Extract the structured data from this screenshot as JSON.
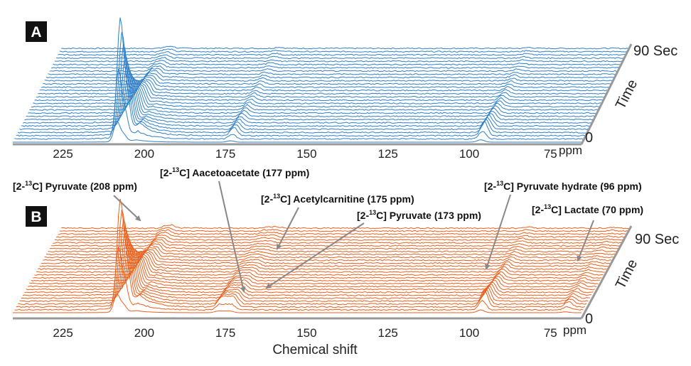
{
  "chart_data": [
    {
      "panel": "A",
      "type": "line",
      "title": "",
      "xlabel": "",
      "xunit": "ppm",
      "xlim": [
        240,
        65
      ],
      "x_ticks": [
        225,
        200,
        175,
        150,
        125,
        100,
        75
      ],
      "depth_axis": {
        "label": "Time",
        "min_label": "0",
        "max_label": "90 Sec",
        "range": [
          0,
          90
        ]
      },
      "color": "#2f7fc8",
      "n_traces": 30,
      "peaks": [
        {
          "ppm": 208,
          "relative_height": 1.0,
          "decay_trace": 6
        },
        {
          "ppm": 206,
          "relative_height": 0.35,
          "decay_trace": 9
        },
        {
          "ppm": 173,
          "relative_height": 0.07,
          "decay_trace": 14
        },
        {
          "ppm": 96,
          "relative_height": 0.12,
          "decay_trace": 10
        }
      ]
    },
    {
      "panel": "B",
      "type": "line",
      "title": "",
      "xlabel": "Chemical shift",
      "xunit": "ppm",
      "xlim": [
        240,
        65
      ],
      "x_ticks": [
        225,
        200,
        175,
        150,
        125,
        100,
        75
      ],
      "depth_axis": {
        "label": "Time",
        "min_label": "0",
        "max_label": "90 Sec",
        "range": [
          0,
          90
        ]
      },
      "color": "#e8601c",
      "n_traces": 30,
      "peaks": [
        {
          "ppm": 208,
          "relative_height": 1.0,
          "decay_trace": 7
        },
        {
          "ppm": 206,
          "relative_height": 0.4,
          "decay_trace": 10
        },
        {
          "ppm": 177,
          "relative_height": 0.08,
          "decay_trace": 12
        },
        {
          "ppm": 175,
          "relative_height": 0.07,
          "decay_trace": 14
        },
        {
          "ppm": 173,
          "relative_height": 0.08,
          "decay_trace": 13
        },
        {
          "ppm": 96,
          "relative_height": 0.16,
          "decay_trace": 10
        },
        {
          "ppm": 70,
          "relative_height": 0.05,
          "decay_trace": 14
        }
      ],
      "annotations": [
        {
          "pre": "[2-",
          "sup": "13",
          "post": "C] Pyruvate (208 ppm)",
          "ppm": 208
        },
        {
          "pre": "[2-",
          "sup": "13",
          "post": "C] Aacetoacetate (177 ppm)",
          "ppm": 177
        },
        {
          "pre": "[2-",
          "sup": "13",
          "post": "C] Acetylcarnitine (175 ppm)",
          "ppm": 175
        },
        {
          "pre": "[2-",
          "sup": "13",
          "post": "C] Pyruvate (173 ppm)",
          "ppm": 173
        },
        {
          "pre": "[2-",
          "sup": "13",
          "post": "C] Pyruvate hydrate (96 ppm)",
          "ppm": 96
        },
        {
          "pre": "[2-",
          "sup": "13",
          "post": "C] Lactate (70 ppm)",
          "ppm": 70
        }
      ]
    }
  ]
}
